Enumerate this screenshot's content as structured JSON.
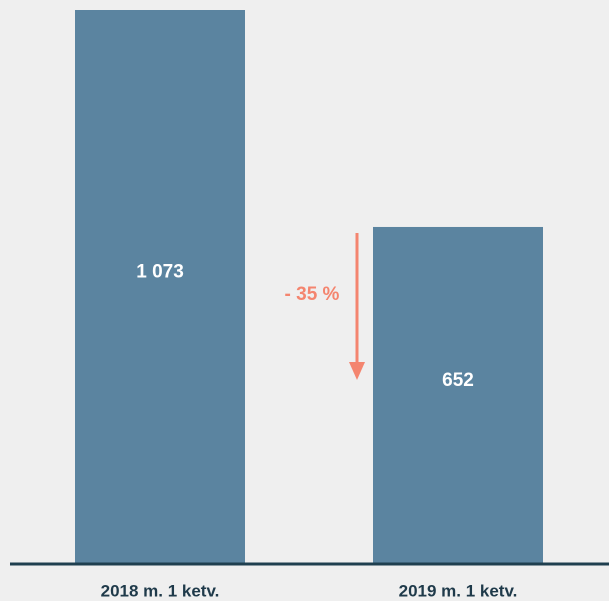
{
  "chart_data": {
    "type": "bar",
    "categories": [
      "2018 m. 1 ketv.",
      "2019 m. 1 ketv."
    ],
    "values": [
      1073,
      652
    ],
    "value_labels": [
      "1 073",
      "652"
    ],
    "color": "#5b84a0",
    "annotation": "- 35 %",
    "annotation_color": "#f4856f"
  }
}
